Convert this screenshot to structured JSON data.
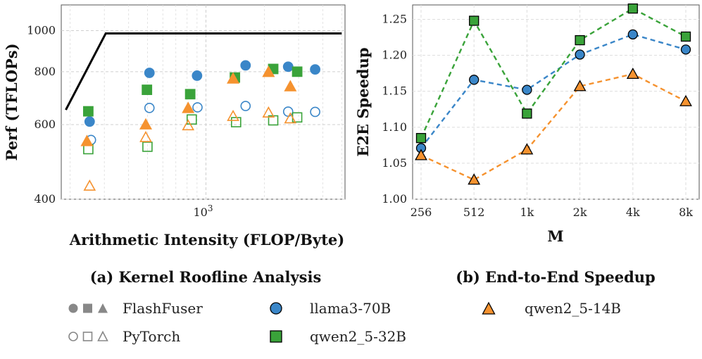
{
  "colors": {
    "blue": "#3a86c8",
    "green": "#3aa33a",
    "orange": "#f5922f",
    "gray": "#888888",
    "roof": "#000000"
  },
  "chart_data": [
    {
      "type": "scatter",
      "title": "(a) Kernel Roofline Analysis",
      "xlabel": "Arithmetic Intensity (FLOP/Byte)",
      "ylabel": "Perf (TFLOPs)",
      "xscale": "log",
      "yscale": "log",
      "xlim": [
        180,
        5200
      ],
      "ylim": [
        400,
        1150
      ],
      "xticks": [
        {
          "value": 1000,
          "base": "10",
          "exp": "3"
        }
      ],
      "yticks": [
        {
          "value": 400,
          "label": "400"
        },
        {
          "value": 600,
          "label": "600"
        },
        {
          "value": 800,
          "label": "800"
        },
        {
          "value": 1000,
          "label": "1000"
        }
      ],
      "roofline": {
        "x": [
          190,
          305,
          5000
        ],
        "y": [
          650,
          985,
          985
        ]
      },
      "series": [
        {
          "name": "llama3-70B FlashFuser",
          "marker": "circle",
          "color": "blue",
          "filled": true,
          "points": [
            [
              252,
              610
            ],
            [
              512,
              795
            ],
            [
              900,
              783
            ],
            [
              1600,
              828
            ],
            [
              2650,
              822
            ],
            [
              3650,
              810
            ]
          ]
        },
        {
          "name": "llama3-70B PyTorch",
          "marker": "circle",
          "color": "blue",
          "filled": false,
          "points": [
            [
              256,
              552
            ],
            [
              512,
              657
            ],
            [
              905,
              659
            ],
            [
              1600,
              664
            ],
            [
              2650,
              644
            ],
            [
              3650,
              643
            ]
          ]
        },
        {
          "name": "qwen2_5-32B FlashFuser",
          "marker": "square",
          "color": "green",
          "filled": true,
          "points": [
            [
              248,
              645
            ],
            [
              497,
              725
            ],
            [
              830,
              708
            ],
            [
              1410,
              775
            ],
            [
              2220,
              812
            ],
            [
              2950,
              800
            ]
          ]
        },
        {
          "name": "qwen2_5-32B PyTorch",
          "marker": "square",
          "color": "green",
          "filled": false,
          "points": [
            [
              248,
              525
            ],
            [
              500,
              532
            ],
            [
              845,
              617
            ],
            [
              1430,
              608
            ],
            [
              2220,
              614
            ],
            [
              2950,
              624
            ]
          ]
        },
        {
          "name": "qwen2_5-14B FlashFuser",
          "marker": "triangle",
          "color": "orange",
          "filled": true,
          "points": [
            [
              244,
              548
            ],
            [
              490,
              600
            ],
            [
              810,
              656
            ],
            [
              1380,
              770
            ],
            [
              2100,
              798
            ],
            [
              2720,
              738
            ]
          ]
        },
        {
          "name": "qwen2_5-14B PyTorch",
          "marker": "triangle",
          "color": "orange",
          "filled": false,
          "points": [
            [
              252,
              430
            ],
            [
              490,
              560
            ],
            [
              810,
              597
            ],
            [
              1380,
              628
            ],
            [
              2100,
              640
            ],
            [
              2720,
              620
            ]
          ]
        }
      ]
    },
    {
      "type": "line",
      "title": "(b) End-to-End Speedup",
      "xlabel": "M",
      "ylabel": "E2E Speedup",
      "categories": [
        "256",
        "512",
        "1k",
        "2k",
        "4k",
        "8k"
      ],
      "ylim": [
        1.0,
        1.27
      ],
      "yticks": [
        "1.00",
        "1.05",
        "1.10",
        "1.15",
        "1.20",
        "1.25"
      ],
      "series": [
        {
          "name": "llama3-70B",
          "marker": "circle",
          "color": "blue",
          "values": [
            1.071,
            1.166,
            1.152,
            1.201,
            1.229,
            1.208
          ]
        },
        {
          "name": "qwen2_5-32B",
          "marker": "square",
          "color": "green",
          "values": [
            1.085,
            1.248,
            1.119,
            1.221,
            1.265,
            1.226
          ]
        },
        {
          "name": "qwen2_5-14B",
          "marker": "triangle",
          "color": "orange",
          "values": [
            1.061,
            1.027,
            1.069,
            1.157,
            1.174,
            1.136
          ]
        }
      ]
    }
  ],
  "legend": {
    "flashfuser": "FlashFuser",
    "pytorch": "PyTorch",
    "llama": "llama3-70B",
    "qwen32": "qwen2_5-32B",
    "qwen14": "qwen2_5-14B"
  }
}
